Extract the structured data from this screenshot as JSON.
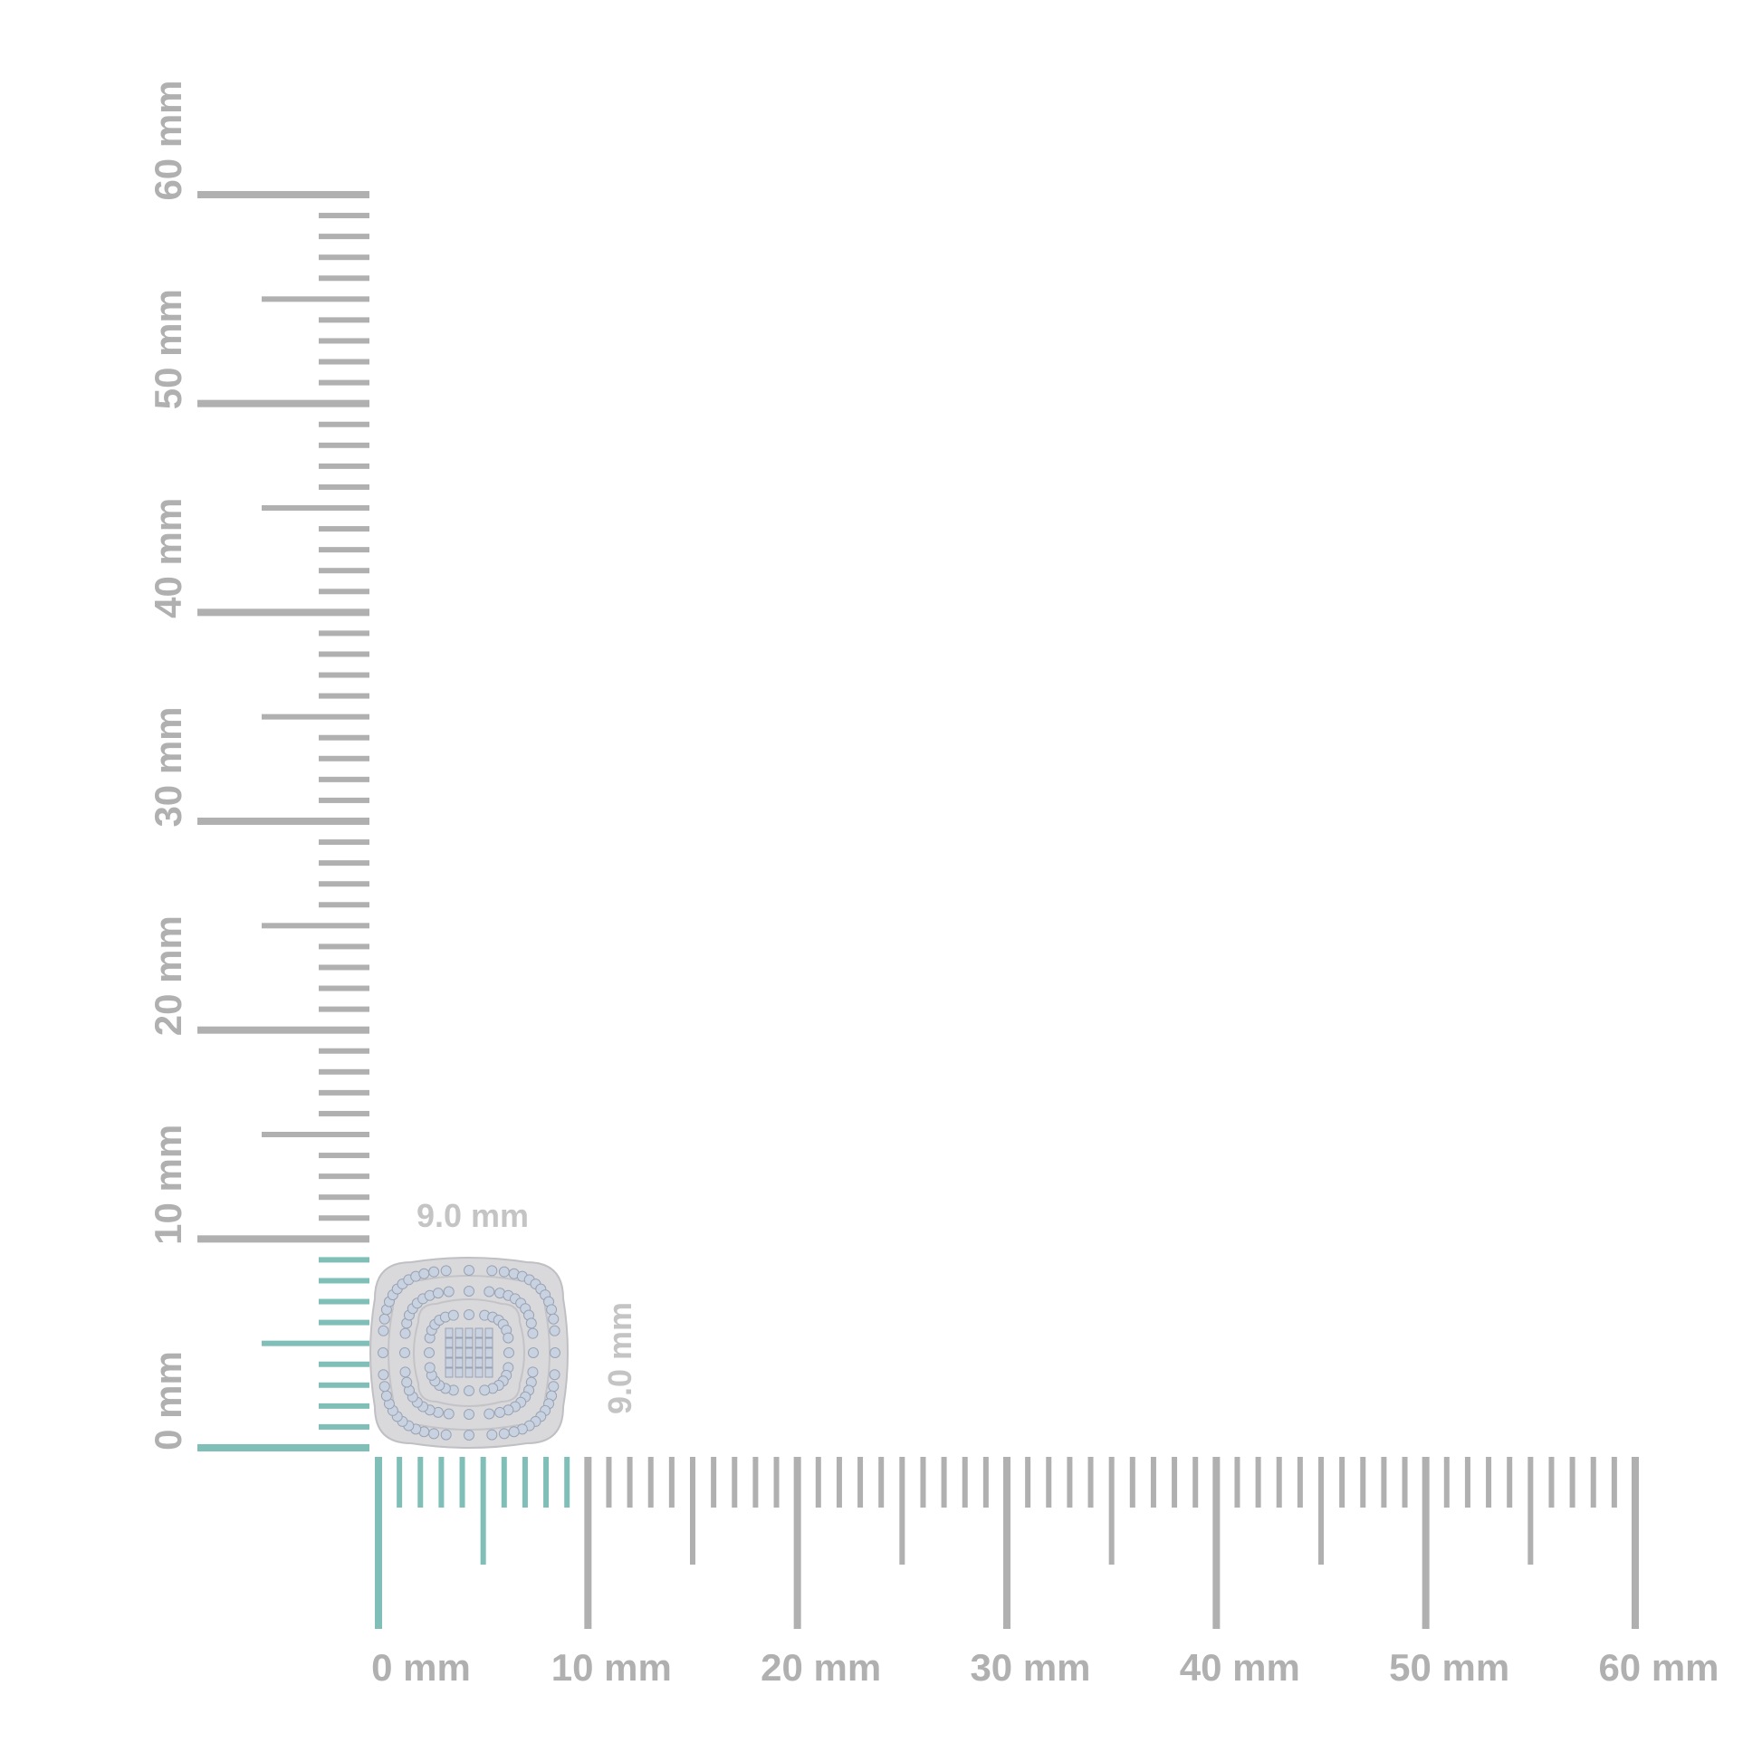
{
  "colors": {
    "ruler": "#b0b0b0",
    "highlight": "#7fbfb8",
    "metal": "#d9d9dc",
    "stone": "#c9d2e0"
  },
  "horizontal_ruler": {
    "range_mm": [
      0,
      60
    ],
    "highlight_mm": 9,
    "labels": [
      "0 mm",
      "10 mm",
      "20 mm",
      "30 mm",
      "40 mm",
      "50 mm",
      "60 mm"
    ]
  },
  "vertical_ruler": {
    "range_mm": [
      0,
      60
    ],
    "highlight_mm": 9,
    "labels": [
      "0 mm",
      "10 mm",
      "20 mm",
      "30 mm",
      "40 mm",
      "50 mm",
      "60 mm"
    ]
  },
  "product": {
    "name_icon": "cushion-halo-earring",
    "width_label": "9.0 mm",
    "height_label": "9.0 mm"
  }
}
